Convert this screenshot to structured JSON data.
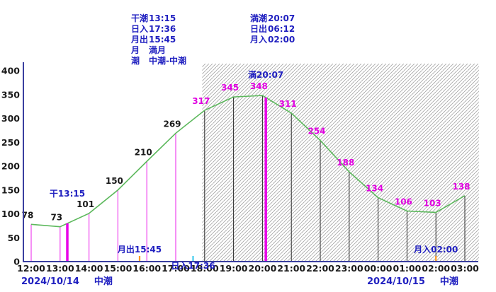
{
  "header": {
    "left": [
      {
        "label": "干潮",
        "value": "13:15"
      },
      {
        "label": "日入",
        "value": "17:36"
      },
      {
        "label": "月出",
        "value": "15:45"
      },
      {
        "label": "月",
        "value": "満月"
      },
      {
        "label": "潮",
        "value": "中潮-中潮"
      }
    ],
    "right": [
      {
        "label": "満潮",
        "value": "20:07"
      },
      {
        "label": "日出",
        "value": "06:12"
      },
      {
        "label": "月入",
        "value": "02:00"
      }
    ]
  },
  "footer": {
    "left": {
      "date": "2024/10/14",
      "tide": "中潮"
    },
    "right": {
      "date": "2024/10/15",
      "tide": "中潮"
    }
  },
  "chart_data": {
    "type": "line",
    "title": "",
    "xlabel": "",
    "ylabel": "",
    "x_labels": [
      "12:00",
      "13:00",
      "14:00",
      "15:00",
      "16:00",
      "17:00",
      "18:00",
      "19:00",
      "20:00",
      "21:00",
      "22:00",
      "23:00",
      "00:00",
      "01:00",
      "02:00",
      "03:00"
    ],
    "values": [
      78,
      73,
      101,
      150,
      210,
      269,
      317,
      345,
      348,
      311,
      254,
      188,
      134,
      106,
      103,
      138
    ],
    "ylim": [
      0,
      400
    ],
    "yticks": [
      0,
      50,
      100,
      150,
      200,
      250,
      300,
      350,
      400
    ],
    "grid": false,
    "night_region_start_label": "18:00",
    "events": [
      {
        "name": "low-tide",
        "label": "干13:15",
        "hour": 13.25,
        "kind": "tide-line",
        "ly": 278
      },
      {
        "name": "moonrise",
        "label": "月出15:45",
        "hour": 15.75,
        "kind": "tick",
        "color": "#ff9922",
        "ly": 357
      },
      {
        "name": "sunset",
        "label": "日入17:36",
        "hour": 17.6,
        "kind": "tick",
        "color": "#44ccee",
        "ly": 380
      },
      {
        "name": "high-tide",
        "label": "満20:07",
        "hour": 20.1167,
        "kind": "tide-line",
        "ly": 110
      },
      {
        "name": "moonset",
        "label": "月入02:00",
        "hour": 26.0,
        "kind": "tick",
        "color": "#ff9922",
        "ly": 357
      }
    ],
    "colors": {
      "curve": "#5cb85c",
      "axis": "#3a3fa0",
      "day_line": "#ee44ee",
      "night_line": "#2a2a2a",
      "tide_line": "#e800e8",
      "day_value": "#1a1a1a",
      "night_value": "#e000e0",
      "annotation": "#2020c0",
      "hatch": "#a8a8a8"
    }
  }
}
